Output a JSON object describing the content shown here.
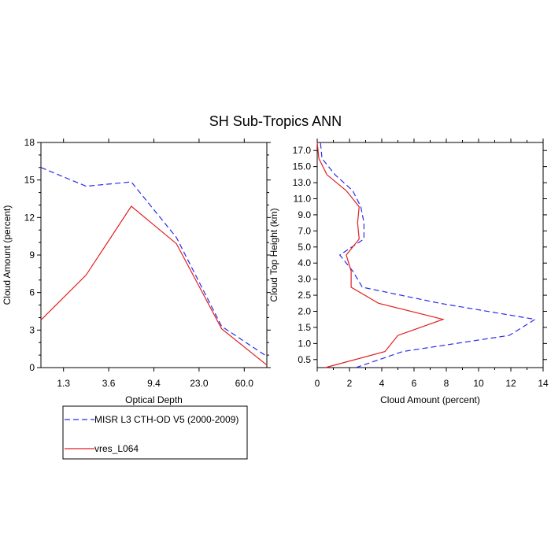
{
  "title": "SH Sub-Tropics ANN",
  "legend": {
    "items": [
      {
        "label": "MISR L3 CTH-OD V5 (2000-2009)",
        "color": "#2a2af0",
        "dash": "dashed"
      },
      {
        "label": "vres_L064",
        "color": "#e02020",
        "dash": "solid"
      }
    ]
  },
  "chart_data": [
    {
      "type": "line",
      "xlabel": "Optical Depth",
      "ylabel": "Cloud Amount (percent)",
      "x": [
        0.0,
        1.0,
        2.0,
        3.0,
        4.0,
        5.0
      ],
      "x_tick_labels": [
        "1.3",
        "3.6",
        "9.4",
        "23.0",
        "60.0"
      ],
      "x_tick_positions": [
        0.5,
        1.5,
        2.5,
        3.5,
        4.5
      ],
      "xlim": [
        0,
        5
      ],
      "ylim": [
        0,
        18
      ],
      "y_ticks": [
        0,
        3,
        6,
        9,
        12,
        15,
        18
      ],
      "series": [
        {
          "name": "MISR L3 CTH-OD V5 (2000-2009)",
          "values": [
            16.0,
            14.5,
            14.85,
            10.4,
            3.3,
            0.9
          ]
        },
        {
          "name": "vres_L064",
          "values": [
            3.8,
            7.4,
            12.9,
            9.9,
            3.1,
            0.2
          ]
        }
      ]
    },
    {
      "type": "line",
      "xlabel": "Cloud Amount (percent)",
      "ylabel": "Cloud Top Height (km)",
      "y_tick_labels": [
        "0.5",
        "1.0",
        "1.5",
        "2.0",
        "2.5",
        "3.0",
        "4.0",
        "5.0",
        "7.0",
        "9.0",
        "11.0",
        "13.0",
        "15.0",
        "17.0"
      ],
      "y_tick_positions": [
        0.5,
        1.5,
        2.5,
        3.5,
        4.5,
        5.5,
        6.5,
        7.5,
        8.5,
        9.5,
        10.5,
        11.5,
        12.5,
        13.5
      ],
      "ylim": [
        0,
        14
      ],
      "xlim": [
        0,
        14
      ],
      "x_ticks": [
        0,
        2,
        4,
        6,
        8,
        10,
        12,
        14
      ],
      "y": [
        0.0,
        1.0,
        2.0,
        3.0,
        4.0,
        5.0,
        6.0,
        7.0,
        8.0,
        9.0,
        10.0,
        11.0,
        12.0,
        13.0,
        14.0
      ],
      "series": [
        {
          "name": "MISR L3 CTH-OD V5 (2000-2009)",
          "values": [
            2.4,
            5.3,
            11.9,
            13.5,
            7.6,
            2.8,
            2.2,
            1.4,
            2.9,
            2.9,
            2.7,
            2.2,
            1.1,
            0.3,
            0.2
          ]
        },
        {
          "name": "vres_L064",
          "values": [
            0.5,
            4.2,
            5.0,
            7.8,
            3.8,
            2.1,
            2.1,
            1.8,
            2.6,
            2.5,
            2.6,
            1.8,
            0.6,
            0.1,
            0.0
          ]
        }
      ]
    }
  ]
}
